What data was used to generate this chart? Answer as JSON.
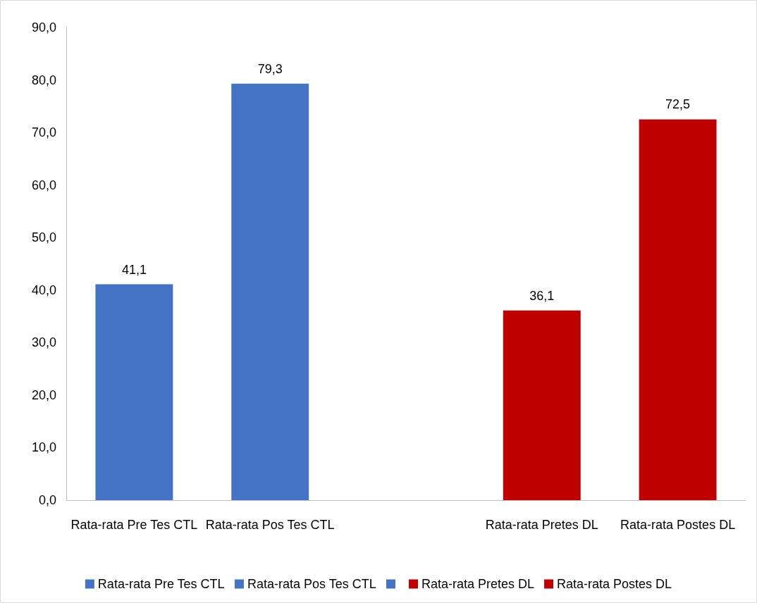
{
  "chart_data": {
    "type": "bar",
    "stacked": true,
    "categories": [
      "Rata-rata Pre Tes CTL",
      "Rata-rata Pos Tes CTL",
      null,
      "Rata-rata Pretes DL",
      "Rata-rata Postes DL"
    ],
    "series": [
      {
        "name": "Rata-rata Pre Tes CTL",
        "color": "#4472c4",
        "values": [
          41.1,
          null,
          null,
          null,
          null
        ],
        "value_labels": [
          "41,1",
          null,
          null,
          null,
          null
        ]
      },
      {
        "name": "Rata-rata Pos Tes CTL",
        "color": "#4472c4",
        "values": [
          null,
          79.3,
          null,
          null,
          null
        ],
        "value_labels": [
          null,
          "79,3",
          null,
          null,
          null
        ]
      },
      {
        "color": "#4472c4",
        "values": [
          null,
          null,
          null,
          null,
          null
        ]
      },
      {
        "name": "Rata-rata Pretes DL",
        "color": "#c00000",
        "values": [
          null,
          null,
          null,
          36.1,
          null
        ],
        "value_labels": [
          null,
          null,
          null,
          "36,1",
          null
        ]
      },
      {
        "name": "Rata-rata Postes DL",
        "color": "#c00000",
        "values": [
          null,
          null,
          null,
          null,
          72.5
        ],
        "value_labels": [
          null,
          null,
          null,
          null,
          "72,5"
        ]
      }
    ],
    "ylim": [
      0,
      90
    ],
    "yticks": [
      {
        "value": 0,
        "label": "0,0"
      },
      {
        "value": 10,
        "label": "10,0"
      },
      {
        "value": 20,
        "label": "20,0"
      },
      {
        "value": 30,
        "label": "30,0"
      },
      {
        "value": 40,
        "label": "40,0"
      },
      {
        "value": 50,
        "label": "50,0"
      },
      {
        "value": 60,
        "label": "60,0"
      },
      {
        "value": 70,
        "label": "70,0"
      },
      {
        "value": 80,
        "label": "80,0"
      },
      {
        "value": 90,
        "label": "90,0"
      }
    ],
    "grid": false,
    "legend": "bottom"
  }
}
